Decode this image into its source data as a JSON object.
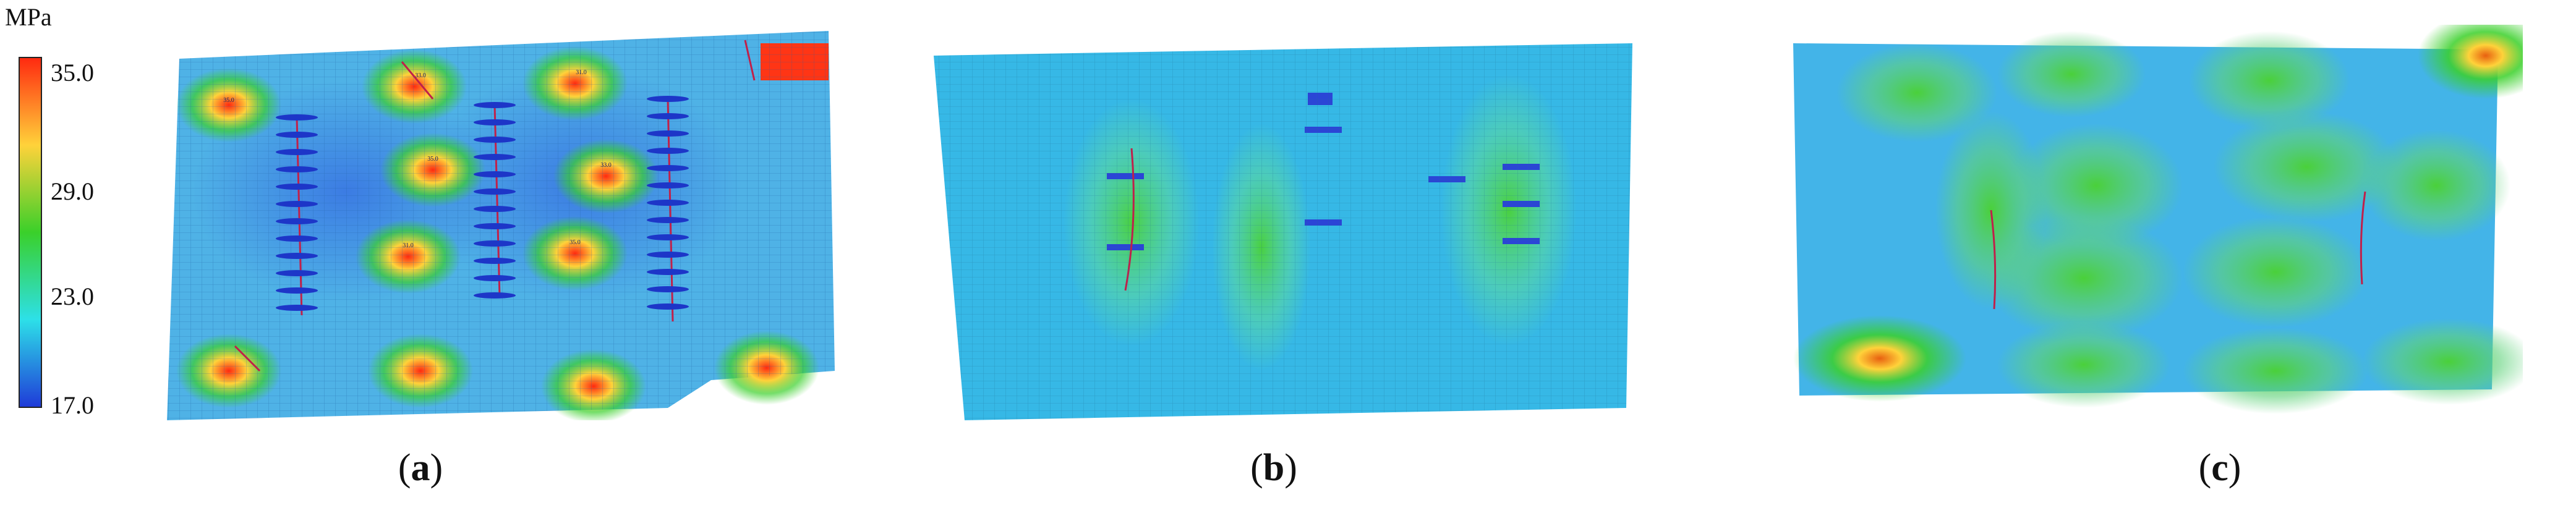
{
  "colorbar": {
    "unit": "MPa",
    "ticks": [
      "35.0",
      "29.0",
      "23.0",
      "17.0"
    ],
    "colors": [
      "#ff2a10",
      "#ffd23a",
      "#3ad02a",
      "#2de0e8",
      "#1f3bd8"
    ]
  },
  "chart_data": [
    {
      "type": "heatmap",
      "label": "(a)",
      "colorbar_unit": "MPa",
      "colorbar_range": [
        17.0,
        35.0
      ],
      "grid": true,
      "hotspots": [
        "35.0",
        "33.0",
        "31.0"
      ],
      "wells": [
        "W1",
        "W2",
        "W3",
        "W4"
      ]
    },
    {
      "type": "heatmap",
      "label": "(b)",
      "colorbar_unit": "MPa",
      "colorbar_range": [
        17.0,
        35.0
      ],
      "grid": true
    },
    {
      "type": "heatmap",
      "label": "(c)",
      "colorbar_unit": "MPa",
      "colorbar_range": [
        17.0,
        35.0
      ],
      "grid": false
    }
  ],
  "labels": {
    "a": "a",
    "b": "b",
    "c": "c"
  }
}
